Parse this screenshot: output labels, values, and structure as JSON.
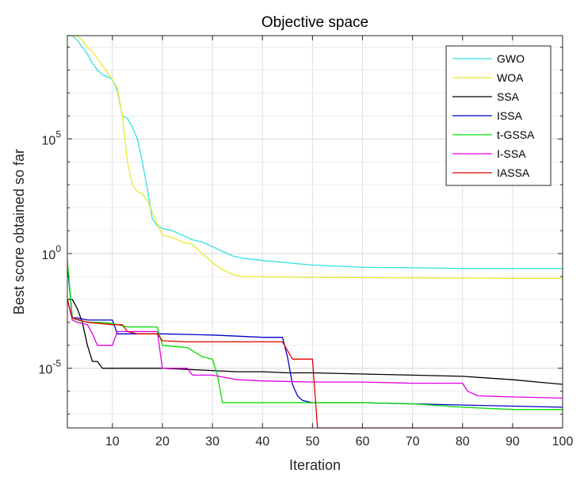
{
  "chart_data": {
    "type": "line",
    "title": "Objective space",
    "xlabel": "Iteration",
    "ylabel": "Best score obtained so far",
    "xlim": [
      1,
      100
    ],
    "x_ticks": [
      10,
      20,
      30,
      40,
      50,
      60,
      70,
      80,
      90,
      100
    ],
    "y_scale": "log",
    "ylim_exponent": [
      -7.6,
      9.5
    ],
    "y_ticks": [
      {
        "exponent": 5,
        "base": "10",
        "sup": "5"
      },
      {
        "exponent": 0,
        "base": "10",
        "sup": "0"
      },
      {
        "exponent": -5,
        "base": "10",
        "sup": "-5"
      }
    ],
    "grid": true,
    "legend_position": "top-right",
    "series": [
      {
        "name": "GWO",
        "color": "#33e0e0",
        "points": [
          [
            1,
            9.5
          ],
          [
            2,
            9.5
          ],
          [
            3,
            9.3
          ],
          [
            4,
            9.0
          ],
          [
            5,
            8.7
          ],
          [
            6,
            8.3
          ],
          [
            7,
            8.0
          ],
          [
            8,
            7.8
          ],
          [
            9,
            7.7
          ],
          [
            10,
            7.6
          ],
          [
            11,
            7.1
          ],
          [
            12,
            6.0
          ],
          [
            13,
            5.9
          ],
          [
            14,
            5.5
          ],
          [
            15,
            5.0
          ],
          [
            16,
            4.0
          ],
          [
            17,
            2.8
          ],
          [
            18,
            1.5
          ],
          [
            19,
            1.2
          ],
          [
            20,
            1.1
          ],
          [
            22,
            1.0
          ],
          [
            24,
            0.8
          ],
          [
            26,
            0.6
          ],
          [
            28,
            0.5
          ],
          [
            30,
            0.3
          ],
          [
            32,
            0.1
          ],
          [
            34,
            -0.1
          ],
          [
            36,
            -0.2
          ],
          [
            40,
            -0.3
          ],
          [
            45,
            -0.4
          ],
          [
            50,
            -0.5
          ],
          [
            55,
            -0.55
          ],
          [
            60,
            -0.6
          ],
          [
            70,
            -0.62
          ],
          [
            80,
            -0.65
          ],
          [
            90,
            -0.65
          ],
          [
            100,
            -0.65
          ]
        ]
      },
      {
        "name": "WOA",
        "color": "#eaea2e",
        "points": [
          [
            1,
            9.5
          ],
          [
            3,
            9.5
          ],
          [
            4,
            9.3
          ],
          [
            5,
            9.0
          ],
          [
            6,
            8.8
          ],
          [
            7,
            8.5
          ],
          [
            8,
            8.2
          ],
          [
            9,
            7.9
          ],
          [
            10,
            7.6
          ],
          [
            11,
            7.2
          ],
          [
            12,
            6.0
          ],
          [
            13,
            4.0
          ],
          [
            14,
            3.0
          ],
          [
            15,
            2.7
          ],
          [
            16,
            2.6
          ],
          [
            17,
            2.3
          ],
          [
            18,
            1.8
          ],
          [
            19,
            1.3
          ],
          [
            20,
            0.8
          ],
          [
            22,
            0.7
          ],
          [
            24,
            0.5
          ],
          [
            26,
            0.4
          ],
          [
            28,
            0.0
          ],
          [
            30,
            -0.4
          ],
          [
            32,
            -0.7
          ],
          [
            34,
            -0.9
          ],
          [
            36,
            -1.0
          ],
          [
            40,
            -1.02
          ],
          [
            50,
            -1.04
          ],
          [
            60,
            -1.05
          ],
          [
            70,
            -1.06
          ],
          [
            80,
            -1.07
          ],
          [
            90,
            -1.08
          ],
          [
            100,
            -1.08
          ]
        ]
      },
      {
        "name": "SSA",
        "color": "#000000",
        "points": [
          [
            1,
            -2.0
          ],
          [
            2,
            -2.0
          ],
          [
            3,
            -2.4
          ],
          [
            4,
            -3.0
          ],
          [
            5,
            -4.0
          ],
          [
            6,
            -4.7
          ],
          [
            7,
            -4.7
          ],
          [
            8,
            -5.0
          ],
          [
            10,
            -5.0
          ],
          [
            15,
            -5.0
          ],
          [
            20,
            -5.0
          ],
          [
            25,
            -5.05
          ],
          [
            30,
            -5.1
          ],
          [
            35,
            -5.15
          ],
          [
            40,
            -5.15
          ],
          [
            45,
            -5.2
          ],
          [
            50,
            -5.2
          ],
          [
            60,
            -5.25
          ],
          [
            70,
            -5.3
          ],
          [
            80,
            -5.35
          ],
          [
            90,
            -5.5
          ],
          [
            95,
            -5.6
          ],
          [
            100,
            -5.7
          ]
        ]
      },
      {
        "name": "ISSA",
        "color": "#0000cc",
        "points": [
          [
            1,
            -0.5
          ],
          [
            2,
            -2.8
          ],
          [
            3,
            -2.8
          ],
          [
            5,
            -2.9
          ],
          [
            7,
            -2.9
          ],
          [
            9,
            -2.9
          ],
          [
            10,
            -2.9
          ],
          [
            11,
            -3.5
          ],
          [
            15,
            -3.5
          ],
          [
            20,
            -3.5
          ],
          [
            30,
            -3.55
          ],
          [
            35,
            -3.6
          ],
          [
            40,
            -3.65
          ],
          [
            44,
            -3.65
          ],
          [
            45,
            -4.5
          ],
          [
            46,
            -5.7
          ],
          [
            47,
            -6.2
          ],
          [
            48,
            -6.4
          ],
          [
            50,
            -6.5
          ],
          [
            60,
            -6.5
          ],
          [
            70,
            -6.55
          ],
          [
            80,
            -6.6
          ],
          [
            90,
            -6.65
          ],
          [
            100,
            -6.7
          ]
        ]
      },
      {
        "name": "t-GSSA",
        "color": "#00e000",
        "points": [
          [
            1,
            -0.3
          ],
          [
            2,
            -2.8
          ],
          [
            3,
            -2.9
          ],
          [
            5,
            -3.0
          ],
          [
            8,
            -3.0
          ],
          [
            10,
            -3.05
          ],
          [
            13,
            -3.2
          ],
          [
            18,
            -3.2
          ],
          [
            19,
            -3.2
          ],
          [
            20,
            -4.0
          ],
          [
            25,
            -4.1
          ],
          [
            28,
            -4.5
          ],
          [
            30,
            -4.6
          ],
          [
            31,
            -5.3
          ],
          [
            32,
            -6.5
          ],
          [
            40,
            -6.5
          ],
          [
            50,
            -6.5
          ],
          [
            60,
            -6.5
          ],
          [
            70,
            -6.55
          ],
          [
            80,
            -6.7
          ],
          [
            90,
            -6.8
          ],
          [
            100,
            -6.8
          ]
        ]
      },
      {
        "name": "I-SSA",
        "color": "#e000e0",
        "points": [
          [
            1,
            -2.0
          ],
          [
            2,
            -2.9
          ],
          [
            3,
            -3.0
          ],
          [
            5,
            -3.1
          ],
          [
            6,
            -3.5
          ],
          [
            7,
            -4.0
          ],
          [
            8,
            -4.0
          ],
          [
            10,
            -4.0
          ],
          [
            11,
            -3.4
          ],
          [
            14,
            -3.4
          ],
          [
            19,
            -3.4
          ],
          [
            20,
            -5.0
          ],
          [
            25,
            -5.0
          ],
          [
            26,
            -5.3
          ],
          [
            30,
            -5.3
          ],
          [
            35,
            -5.5
          ],
          [
            40,
            -5.55
          ],
          [
            50,
            -5.6
          ],
          [
            60,
            -5.6
          ],
          [
            70,
            -5.65
          ],
          [
            80,
            -5.65
          ],
          [
            81,
            -6.0
          ],
          [
            83,
            -6.2
          ],
          [
            90,
            -6.25
          ],
          [
            100,
            -6.3
          ]
        ]
      },
      {
        "name": "IASSA",
        "color": "#e00000",
        "points": [
          [
            1,
            -2.0
          ],
          [
            2,
            -2.8
          ],
          [
            5,
            -3.0
          ],
          [
            10,
            -3.1
          ],
          [
            12,
            -3.1
          ],
          [
            13,
            -3.4
          ],
          [
            15,
            -3.5
          ],
          [
            18,
            -3.5
          ],
          [
            19,
            -3.5
          ],
          [
            20,
            -3.8
          ],
          [
            25,
            -3.85
          ],
          [
            30,
            -3.85
          ],
          [
            35,
            -3.85
          ],
          [
            44,
            -3.85
          ],
          [
            46,
            -4.6
          ],
          [
            50,
            -4.6
          ],
          [
            51,
            -7.6
          ],
          [
            55,
            -7.6
          ],
          [
            100,
            -7.6
          ]
        ]
      }
    ]
  }
}
